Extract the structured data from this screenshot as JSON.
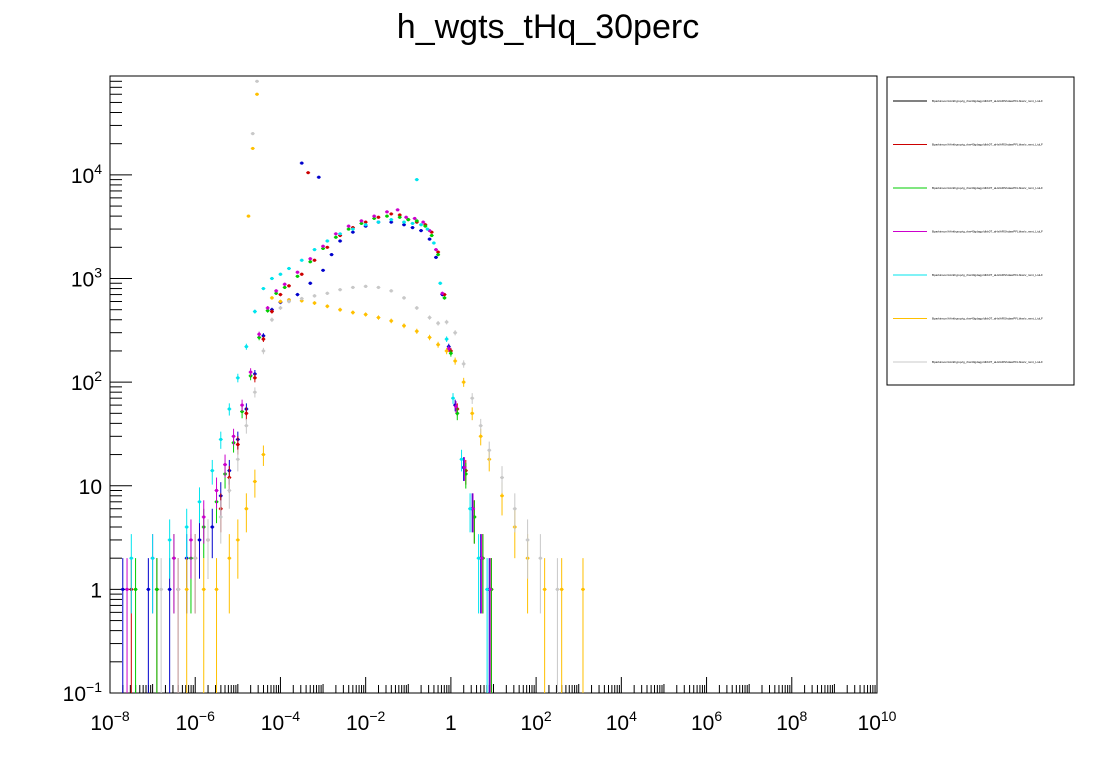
{
  "chart_data": {
    "type": "scatter",
    "title": "h_wgts_tHq_30perc",
    "xlabel": "",
    "ylabel": "",
    "xscale": "log",
    "yscale": "log",
    "xlim": [
      1e-08,
      10000000000.0
    ],
    "ylim": [
      0.1,
      90000
    ],
    "grid": false,
    "legend_position": "right",
    "x_ticks": [
      {
        "base": "10",
        "exp": "−8"
      },
      {
        "base": "10",
        "exp": "−6"
      },
      {
        "base": "10",
        "exp": "−4"
      },
      {
        "base": "10",
        "exp": "−2"
      },
      {
        "base": "1",
        "exp": ""
      },
      {
        "base": "10",
        "exp": "2"
      },
      {
        "base": "10",
        "exp": "4"
      },
      {
        "base": "10",
        "exp": "6"
      },
      {
        "base": "10",
        "exp": "8"
      },
      {
        "base": "10",
        "exp": "10"
      }
    ],
    "y_ticks": [
      {
        "base": "10",
        "exp": "−1"
      },
      {
        "base": "1",
        "exp": ""
      },
      {
        "base": "10",
        "exp": ""
      },
      {
        "base": "10",
        "exp": "2"
      },
      {
        "base": "10",
        "exp": "3"
      },
      {
        "base": "10",
        "exp": "4"
      }
    ],
    "series": [
      {
        "color": "#0000cc",
        "points": [
          [
            -7.7,
            1
          ],
          [
            -7.1,
            1
          ],
          [
            -6.6,
            1
          ],
          [
            -6.2,
            2
          ],
          [
            -5.9,
            3
          ],
          [
            -5.6,
            4
          ],
          [
            -5.4,
            8
          ],
          [
            -5.2,
            14
          ],
          [
            -5.0,
            28
          ],
          [
            -4.8,
            55
          ],
          [
            -4.6,
            120
          ],
          [
            -4.4,
            280
          ],
          [
            -4.2,
            500
          ],
          [
            -4.0,
            590
          ],
          [
            -3.8,
            620
          ],
          [
            -3.6,
            700
          ],
          [
            -3.3,
            900
          ],
          [
            -3.0,
            1200
          ],
          [
            -2.8,
            1700
          ],
          [
            -2.6,
            2300
          ],
          [
            -2.3,
            2800
          ],
          [
            -2.0,
            3200
          ],
          [
            -1.7,
            3500
          ],
          [
            -1.4,
            3500
          ],
          [
            -1.1,
            3300
          ],
          [
            -0.9,
            3100
          ],
          [
            -0.7,
            2900
          ],
          [
            -0.5,
            2400
          ],
          [
            -0.35,
            1600
          ],
          [
            -0.2,
            700
          ],
          [
            -0.05,
            220
          ],
          [
            0.1,
            60
          ],
          [
            0.3,
            15
          ],
          [
            0.5,
            6
          ],
          [
            0.7,
            2
          ],
          [
            0.9,
            1
          ]
        ],
        "spikes": [
          [
            -3.5,
            13000
          ],
          [
            -3.1,
            9500
          ]
        ]
      },
      {
        "color": "#cc0000",
        "points": [
          [
            -7.5,
            1
          ],
          [
            -6.9,
            1
          ],
          [
            -6.4,
            1
          ],
          [
            -6.0,
            2
          ],
          [
            -5.7,
            3
          ],
          [
            -5.4,
            6
          ],
          [
            -5.2,
            12
          ],
          [
            -5.0,
            25
          ],
          [
            -4.8,
            50
          ],
          [
            -4.6,
            110
          ],
          [
            -4.4,
            260
          ],
          [
            -4.2,
            480
          ],
          [
            -4.0,
            700
          ],
          [
            -3.8,
            850
          ],
          [
            -3.5,
            1100
          ],
          [
            -3.2,
            1500
          ],
          [
            -2.9,
            2000
          ],
          [
            -2.6,
            2600
          ],
          [
            -2.3,
            3100
          ],
          [
            -2.0,
            3500
          ],
          [
            -1.7,
            3900
          ],
          [
            -1.4,
            4200
          ],
          [
            -1.2,
            4100
          ],
          [
            -1.0,
            3700
          ],
          [
            -0.8,
            3500
          ],
          [
            -0.6,
            3300
          ],
          [
            -0.45,
            2800
          ],
          [
            -0.3,
            1800
          ],
          [
            -0.15,
            700
          ],
          [
            0.0,
            200
          ],
          [
            0.15,
            55
          ],
          [
            0.35,
            14
          ],
          [
            0.55,
            5
          ],
          [
            0.75,
            2
          ],
          [
            0.95,
            1
          ]
        ],
        "spikes": [
          [
            -3.35,
            10500
          ]
        ]
      },
      {
        "color": "#00cc00",
        "points": [
          [
            -7.4,
            1
          ],
          [
            -6.9,
            1
          ],
          [
            -6.5,
            2
          ],
          [
            -6.1,
            2
          ],
          [
            -5.8,
            4
          ],
          [
            -5.5,
            7
          ],
          [
            -5.3,
            13
          ],
          [
            -5.1,
            26
          ],
          [
            -4.9,
            52
          ],
          [
            -4.7,
            115
          ],
          [
            -4.5,
            270
          ],
          [
            -4.3,
            490
          ],
          [
            -4.1,
            720
          ],
          [
            -3.9,
            820
          ],
          [
            -3.6,
            1050
          ],
          [
            -3.3,
            1450
          ],
          [
            -3.0,
            1950
          ],
          [
            -2.7,
            2500
          ],
          [
            -2.4,
            3000
          ],
          [
            -2.1,
            3400
          ],
          [
            -1.8,
            3800
          ],
          [
            -1.5,
            4000
          ],
          [
            -1.2,
            3900
          ],
          [
            -1.0,
            3700
          ],
          [
            -0.8,
            3600
          ],
          [
            -0.6,
            3200
          ],
          [
            -0.45,
            2600
          ],
          [
            -0.3,
            1700
          ],
          [
            -0.15,
            650
          ],
          [
            0.0,
            190
          ],
          [
            0.15,
            50
          ],
          [
            0.35,
            13
          ],
          [
            0.55,
            5
          ],
          [
            0.75,
            2
          ],
          [
            0.95,
            1
          ]
        ],
        "spikes": []
      },
      {
        "color": "#cc00cc",
        "points": [
          [
            -7.6,
            1
          ],
          [
            -7.0,
            2
          ],
          [
            -6.5,
            2
          ],
          [
            -6.1,
            3
          ],
          [
            -5.8,
            5
          ],
          [
            -5.5,
            9
          ],
          [
            -5.3,
            16
          ],
          [
            -5.1,
            30
          ],
          [
            -4.9,
            60
          ],
          [
            -4.7,
            125
          ],
          [
            -4.5,
            290
          ],
          [
            -4.3,
            520
          ],
          [
            -4.1,
            760
          ],
          [
            -3.9,
            880
          ],
          [
            -3.6,
            1150
          ],
          [
            -3.3,
            1550
          ],
          [
            -3.0,
            2050
          ],
          [
            -2.7,
            2700
          ],
          [
            -2.4,
            3200
          ],
          [
            -2.1,
            3600
          ],
          [
            -1.8,
            4000
          ],
          [
            -1.5,
            4400
          ],
          [
            -1.25,
            4600
          ],
          [
            -1.05,
            3900
          ],
          [
            -0.85,
            3800
          ],
          [
            -0.65,
            3500
          ],
          [
            -0.5,
            2900
          ],
          [
            -0.35,
            1900
          ],
          [
            -0.2,
            720
          ],
          [
            -0.05,
            210
          ],
          [
            0.12,
            58
          ],
          [
            0.32,
            15
          ],
          [
            0.52,
            6
          ],
          [
            0.72,
            2
          ],
          [
            0.92,
            1
          ]
        ],
        "spikes": []
      },
      {
        "color": "#00e5ee",
        "points": [
          [
            -7.5,
            2
          ],
          [
            -7.0,
            2
          ],
          [
            -6.6,
            3
          ],
          [
            -6.2,
            4
          ],
          [
            -5.9,
            7
          ],
          [
            -5.6,
            14
          ],
          [
            -5.4,
            28
          ],
          [
            -5.2,
            55
          ],
          [
            -5.0,
            110
          ],
          [
            -4.8,
            220
          ],
          [
            -4.6,
            480
          ],
          [
            -4.4,
            800
          ],
          [
            -4.2,
            1000
          ],
          [
            -4.0,
            1100
          ],
          [
            -3.8,
            1250
          ],
          [
            -3.5,
            1500
          ],
          [
            -3.2,
            1900
          ],
          [
            -2.9,
            2300
          ],
          [
            -2.6,
            2700
          ],
          [
            -2.3,
            3000
          ],
          [
            -2.0,
            3300
          ],
          [
            -1.7,
            3500
          ],
          [
            -1.4,
            3700
          ],
          [
            -1.1,
            3500
          ],
          [
            -0.9,
            3400
          ],
          [
            -0.7,
            3300
          ],
          [
            -0.55,
            3000
          ],
          [
            -0.4,
            2200
          ],
          [
            -0.25,
            900
          ],
          [
            -0.1,
            260
          ],
          [
            0.05,
            70
          ],
          [
            0.25,
            18
          ],
          [
            0.45,
            6
          ],
          [
            0.65,
            2
          ],
          [
            0.85,
            1
          ]
        ],
        "spikes": [
          [
            -0.8,
            9000
          ]
        ]
      },
      {
        "color": "#ffc000",
        "points": [
          [
            -6.2,
            1
          ],
          [
            -5.8,
            1
          ],
          [
            -5.5,
            1
          ],
          [
            -5.2,
            2
          ],
          [
            -5.0,
            3
          ],
          [
            -4.8,
            6
          ],
          [
            -4.6,
            11
          ],
          [
            -4.4,
            20
          ],
          [
            -4.2,
            650
          ],
          [
            -4.0,
            600
          ],
          [
            -3.8,
            620
          ],
          [
            -3.5,
            610
          ],
          [
            -3.2,
            580
          ],
          [
            -2.9,
            540
          ],
          [
            -2.6,
            500
          ],
          [
            -2.3,
            470
          ],
          [
            -2.0,
            450
          ],
          [
            -1.7,
            420
          ],
          [
            -1.4,
            390
          ],
          [
            -1.1,
            350
          ],
          [
            -0.8,
            310
          ],
          [
            -0.5,
            270
          ],
          [
            -0.3,
            230
          ],
          [
            -0.1,
            200
          ],
          [
            0.1,
            160
          ],
          [
            0.3,
            100
          ],
          [
            0.5,
            50
          ],
          [
            0.7,
            30
          ],
          [
            0.9,
            18
          ],
          [
            1.2,
            8
          ],
          [
            1.5,
            4
          ],
          [
            1.8,
            2
          ],
          [
            2.2,
            1
          ],
          [
            2.6,
            1
          ],
          [
            3.1,
            1
          ]
        ],
        "spikes": [
          [
            -4.55,
            60000
          ],
          [
            -4.65,
            18000
          ],
          [
            -4.75,
            4000
          ]
        ]
      },
      {
        "color": "#c8c8c8",
        "points": [
          [
            -6.8,
            1
          ],
          [
            -6.4,
            1
          ],
          [
            -6.0,
            2
          ],
          [
            -5.7,
            3
          ],
          [
            -5.4,
            5
          ],
          [
            -5.2,
            9
          ],
          [
            -5.0,
            18
          ],
          [
            -4.8,
            38
          ],
          [
            -4.6,
            80
          ],
          [
            -4.4,
            200
          ],
          [
            -4.2,
            400
          ],
          [
            -4.0,
            520
          ],
          [
            -3.8,
            600
          ],
          [
            -3.5,
            640
          ],
          [
            -3.2,
            680
          ],
          [
            -2.9,
            720
          ],
          [
            -2.6,
            780
          ],
          [
            -2.3,
            820
          ],
          [
            -2.0,
            840
          ],
          [
            -1.7,
            820
          ],
          [
            -1.4,
            760
          ],
          [
            -1.1,
            650
          ],
          [
            -0.8,
            520
          ],
          [
            -0.5,
            420
          ],
          [
            -0.3,
            370
          ],
          [
            -0.1,
            380
          ],
          [
            0.1,
            300
          ],
          [
            0.3,
            150
          ],
          [
            0.5,
            70
          ],
          [
            0.7,
            38
          ],
          [
            0.9,
            22
          ],
          [
            1.2,
            12
          ],
          [
            1.5,
            6
          ],
          [
            1.8,
            3
          ],
          [
            2.1,
            2
          ],
          [
            2.5,
            1
          ]
        ],
        "spikes": [
          [
            -4.55,
            80000
          ],
          [
            -4.65,
            25000
          ]
        ]
      }
    ]
  },
  "legend": {
    "entries": [
      {
        "label": "Bparkinson/AArkhypqvig_rbw40gdagp/dbb0T_aHxlARShdawPFLbkw/v_rwnt_LiuLF",
        "color": "#000000"
      },
      {
        "label": "Bparkinson/AArkhypqvig_rbw40gdagp/dbb0T_aHxlARShdawPFLbkw/v_rwnt_LiuLF",
        "color": "#cc0000"
      },
      {
        "label": "Bparkinson/AArkhypqvig_rbw40gdagp/dbb0T_aHxlARShdawPFLbkw/v_rwnt_LiuLF",
        "color": "#00cc00"
      },
      {
        "label": "Bparkinson/AArkhypqvig_rbw40gdagp/dbb0T_aHxlARShdawPFLbkw/v_rwnt_LiuLF",
        "color": "#cc00cc"
      },
      {
        "label": "Bparkinson/AArkhypqvig_rbw40gdagp/dbb0T_aHxlARShdawPFLbkw/v_rwnt_LiuLF",
        "color": "#00e5ee"
      },
      {
        "label": "Bparkinson/AArkhypqvig_rbw40gdagp/dbb0T_aHxlARShdawPFLbkw/v_rwnt_LiuLF",
        "color": "#ffc000"
      },
      {
        "label": "Bparkinson/AArkhypqvig_rbw40gdagp/dbb0T_aHxlARShdawPFLbkw/v_rwnt_LiuLF",
        "color": "#c8c8c8"
      }
    ]
  }
}
